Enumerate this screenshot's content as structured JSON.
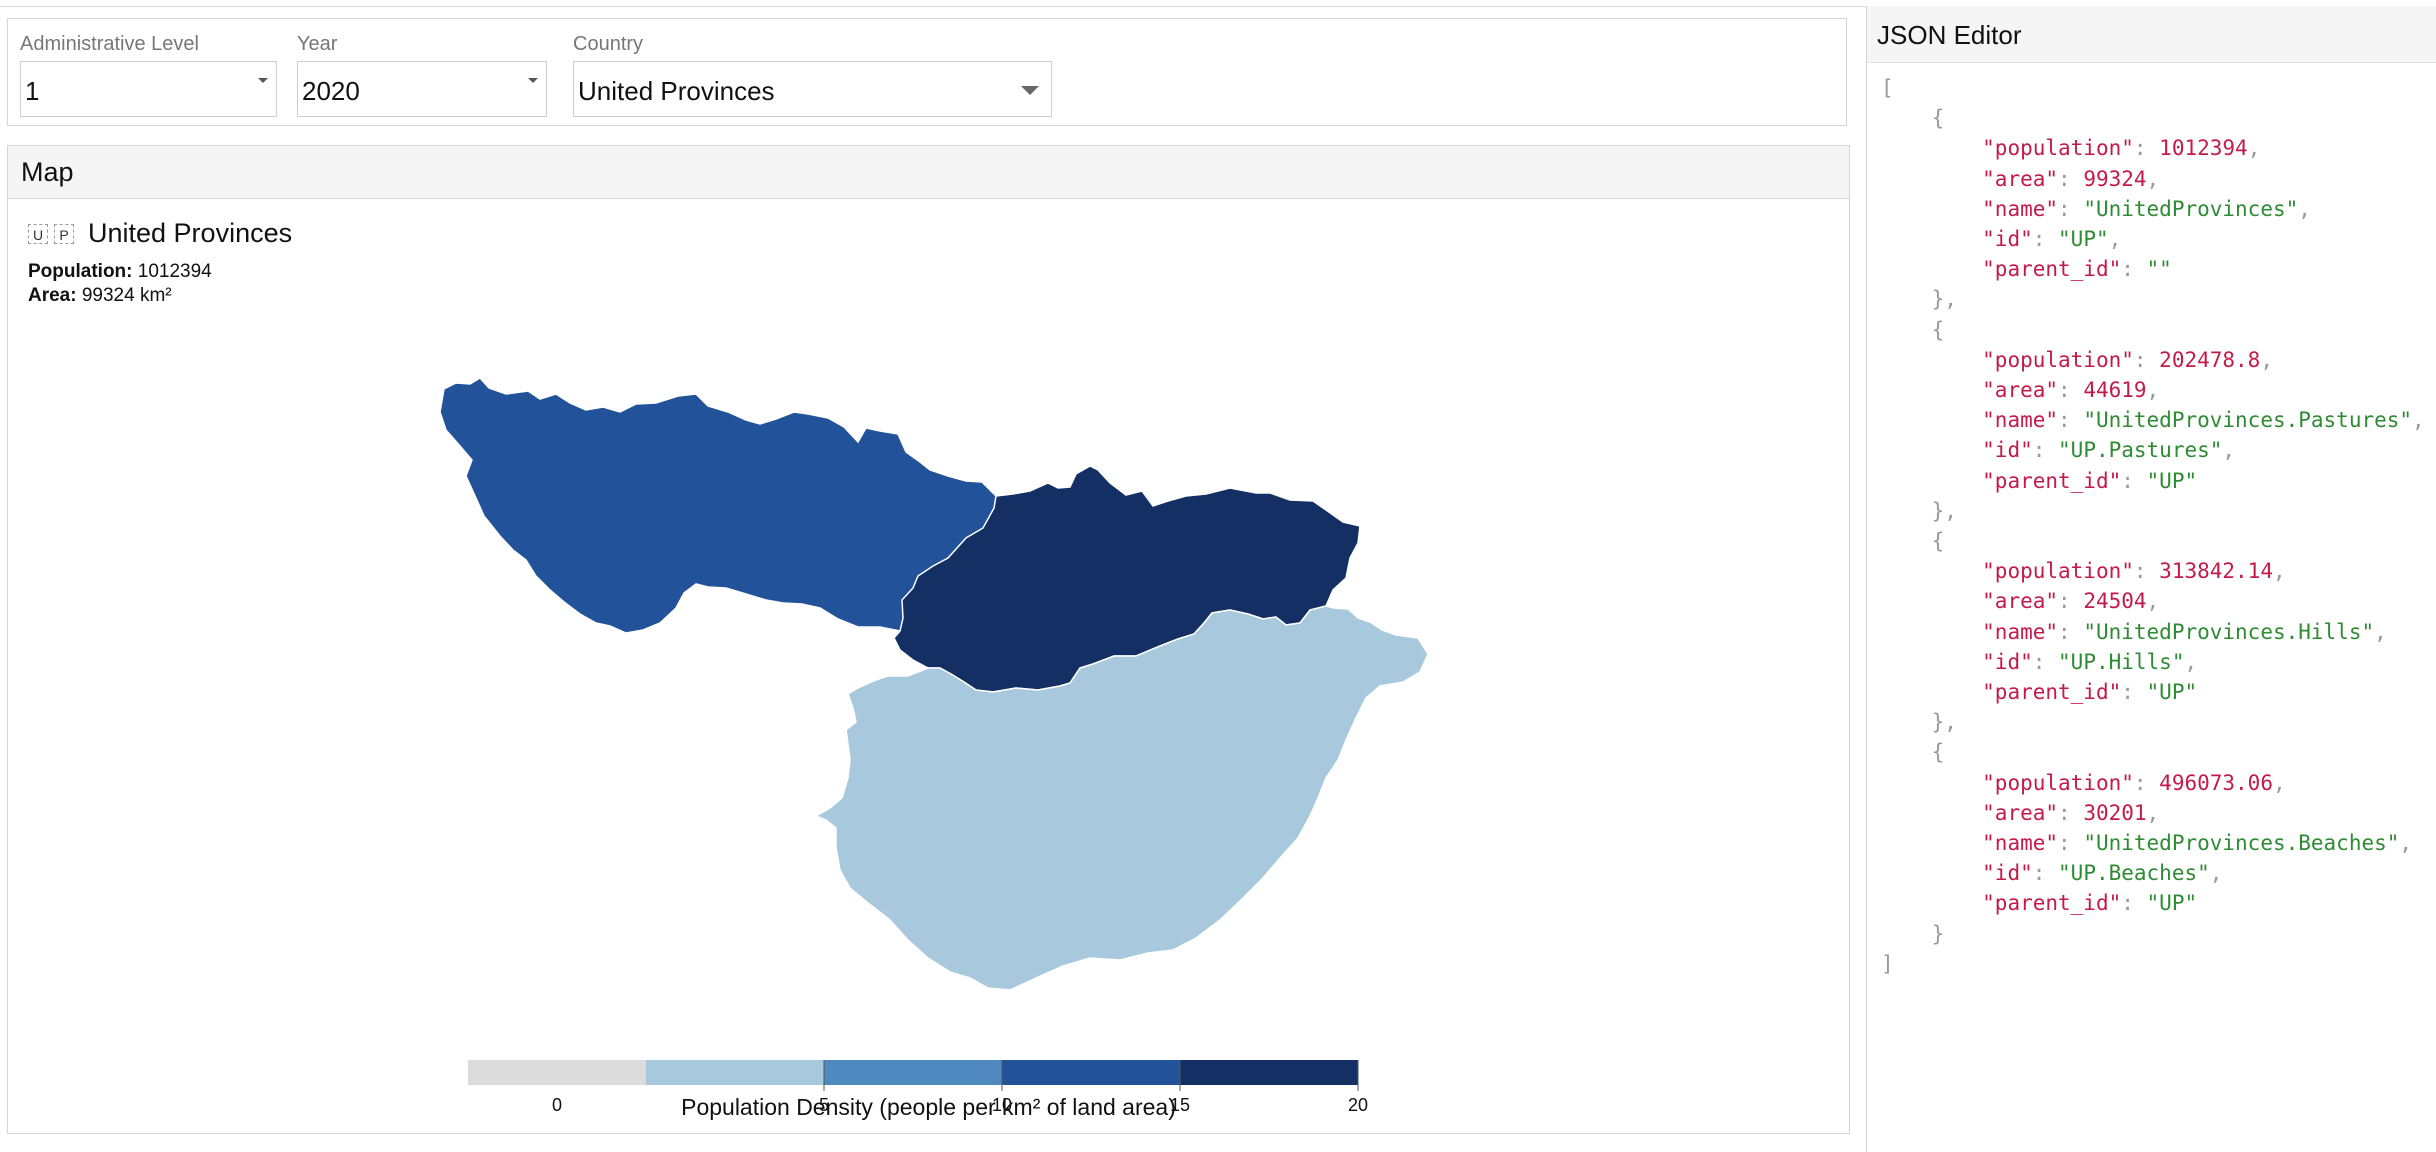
{
  "controls": {
    "admin_level": {
      "label": "Administrative Level",
      "value": "1"
    },
    "year": {
      "label": "Year",
      "value": "2020"
    },
    "country": {
      "label": "Country",
      "value": "United Provinces"
    }
  },
  "map": {
    "title": "Map",
    "info": {
      "flag_letters": [
        "U",
        "P"
      ],
      "name": "United Provinces",
      "population_label": "Population:",
      "population_value": "1012394",
      "area_label": "Area:",
      "area_value": "99324 km²"
    },
    "regions": [
      {
        "name": "UnitedProvinces.Pastures",
        "color": "#22539a"
      },
      {
        "name": "UnitedProvinces.Hills",
        "color": "#142f63"
      },
      {
        "name": "UnitedProvinces.Beaches",
        "color": "#a8c8dd"
      }
    ],
    "legend": {
      "title": "Population Density (people per km² of land area)",
      "bins": [
        {
          "color": "#dcdcdc"
        },
        {
          "color": "#a8c8dd"
        },
        {
          "color": "#5089bf"
        },
        {
          "color": "#22539a"
        },
        {
          "color": "#142f63"
        }
      ],
      "ticks": [
        "0",
        "5",
        "10",
        "15",
        "20"
      ]
    }
  },
  "json_editor": {
    "title": "JSON Editor",
    "records": [
      {
        "population": "1012394",
        "area": "99324",
        "name": "UnitedProvinces",
        "id": "UP",
        "parent_id": ""
      },
      {
        "population": "202478.8",
        "area": "44619",
        "name": "UnitedProvinces.Pastures",
        "id": "UP.Pastures",
        "parent_id": "UP"
      },
      {
        "population": "313842.14",
        "area": "24504",
        "name": "UnitedProvinces.Hills",
        "id": "UP.Hills",
        "parent_id": "UP"
      },
      {
        "population": "496073.06",
        "area": "30201",
        "name": "UnitedProvinces.Beaches",
        "id": "UP.Beaches",
        "parent_id": "UP"
      }
    ]
  }
}
